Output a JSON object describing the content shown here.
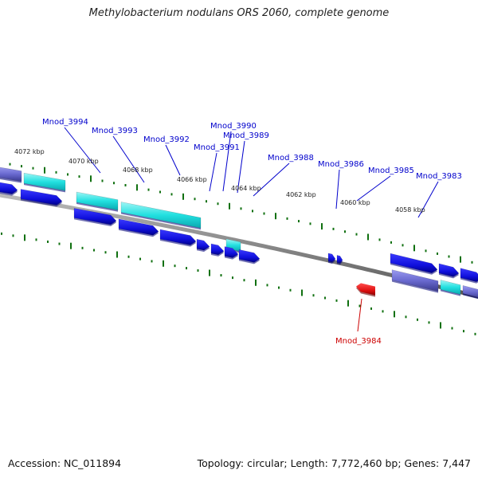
{
  "title": "Methylobacterium nodulans ORS 2060, complete genome",
  "footer": {
    "accession": "Accession: NC_011894",
    "summary": "Topology: circular; Length: 7,772,460 bp; Genes: 7,447"
  },
  "colors": {
    "forward_gene": "#1010e0",
    "forward_gene_edge": "#00007a",
    "cds_cyan": "#22e0e0",
    "cds_purple": "#7070cc",
    "reverse_gene": "#e01010",
    "backbone": "#777777",
    "tick": "#107010",
    "label_blue": "#0000cc",
    "label_red": "#cc0000"
  },
  "tick_labels": [
    "4072 kbp",
    "4070 kbp",
    "4068 kbp",
    "4066 kbp",
    "4064 kbp",
    "4062 kbp",
    "4060 kbp",
    "4058 kbp"
  ],
  "gene_labels": [
    "Mnod_3994",
    "Mnod_3993",
    "Mnod_3992",
    "Mnod_3991",
    "Mnod_3990",
    "Mnod_3989",
    "Mnod_3988",
    "Mnod_3986",
    "Mnod_3985",
    "Mnod_3983",
    "Mnod_3984"
  ]
}
